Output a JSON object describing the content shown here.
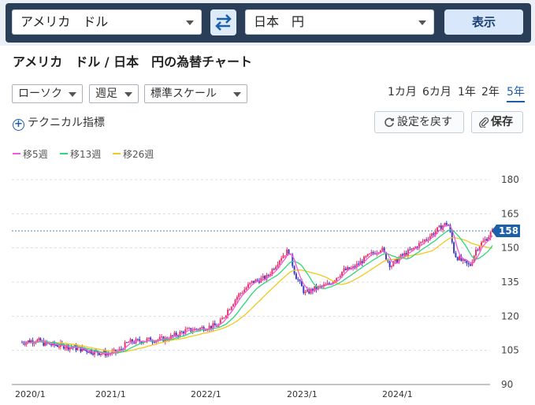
{
  "header": {
    "from_currency": "アメリカ　ドル",
    "to_currency": "日本　円",
    "show_label": "表示"
  },
  "title": "アメリカ　ドル / 日本　円の為替チャート",
  "controls": {
    "chart_type": "ローソク",
    "interval": "週足",
    "scale": "標準スケール",
    "periods": [
      "1カ月",
      "6カ月",
      "1年",
      "2年",
      "5年"
    ],
    "active_period": "5年",
    "technical": "テクニカル指標",
    "reset_label": "設定を戻す",
    "save_label": "保存"
  },
  "legend": [
    {
      "label": "移5週",
      "color": "#f25ad8"
    },
    {
      "label": "移13週",
      "color": "#2fd67a"
    },
    {
      "label": "移26週",
      "color": "#f2c81e"
    }
  ],
  "colors": {
    "up": "#e8336b",
    "down": "#3a3cc8",
    "current_line": "#1d5fa8",
    "badge": "#1d5fa8"
  },
  "chart_data": {
    "type": "candlestick",
    "y_ticks": [
      180,
      165,
      150,
      135,
      120,
      105,
      90
    ],
    "ylim": [
      90,
      180
    ],
    "x_ticks": [
      "2020/1",
      "2021/1",
      "2022/1",
      "2023/1",
      "2024/1"
    ],
    "current_value": "158",
    "current_level": 157.5,
    "series": [
      {
        "name": "移5週"
      },
      {
        "name": "移13週"
      },
      {
        "name": "移26週"
      }
    ],
    "approx_path": [
      [
        2019.92,
        108.5
      ],
      [
        2020.1,
        109.5
      ],
      [
        2020.2,
        108
      ],
      [
        2020.3,
        107.5
      ],
      [
        2020.45,
        107
      ],
      [
        2020.6,
        106
      ],
      [
        2020.8,
        104.5
      ],
      [
        2021.0,
        103.5
      ],
      [
        2021.1,
        104.5
      ],
      [
        2021.2,
        108.5
      ],
      [
        2021.4,
        109.5
      ],
      [
        2021.6,
        110
      ],
      [
        2021.8,
        113.5
      ],
      [
        2022.0,
        115
      ],
      [
        2022.15,
        116
      ],
      [
        2022.25,
        123
      ],
      [
        2022.35,
        129
      ],
      [
        2022.5,
        135
      ],
      [
        2022.65,
        137
      ],
      [
        2022.8,
        146
      ],
      [
        2022.88,
        149
      ],
      [
        2022.95,
        138
      ],
      [
        2023.05,
        130
      ],
      [
        2023.15,
        132
      ],
      [
        2023.3,
        134
      ],
      [
        2023.45,
        140
      ],
      [
        2023.55,
        141
      ],
      [
        2023.7,
        146
      ],
      [
        2023.85,
        150
      ],
      [
        2023.95,
        142
      ],
      [
        2024.05,
        146
      ],
      [
        2024.2,
        150
      ],
      [
        2024.35,
        155
      ],
      [
        2024.5,
        160
      ],
      [
        2024.55,
        161
      ],
      [
        2024.62,
        147
      ],
      [
        2024.7,
        144
      ],
      [
        2024.78,
        142
      ],
      [
        2024.85,
        150
      ],
      [
        2024.95,
        154
      ],
      [
        2025.02,
        157.5
      ]
    ]
  }
}
